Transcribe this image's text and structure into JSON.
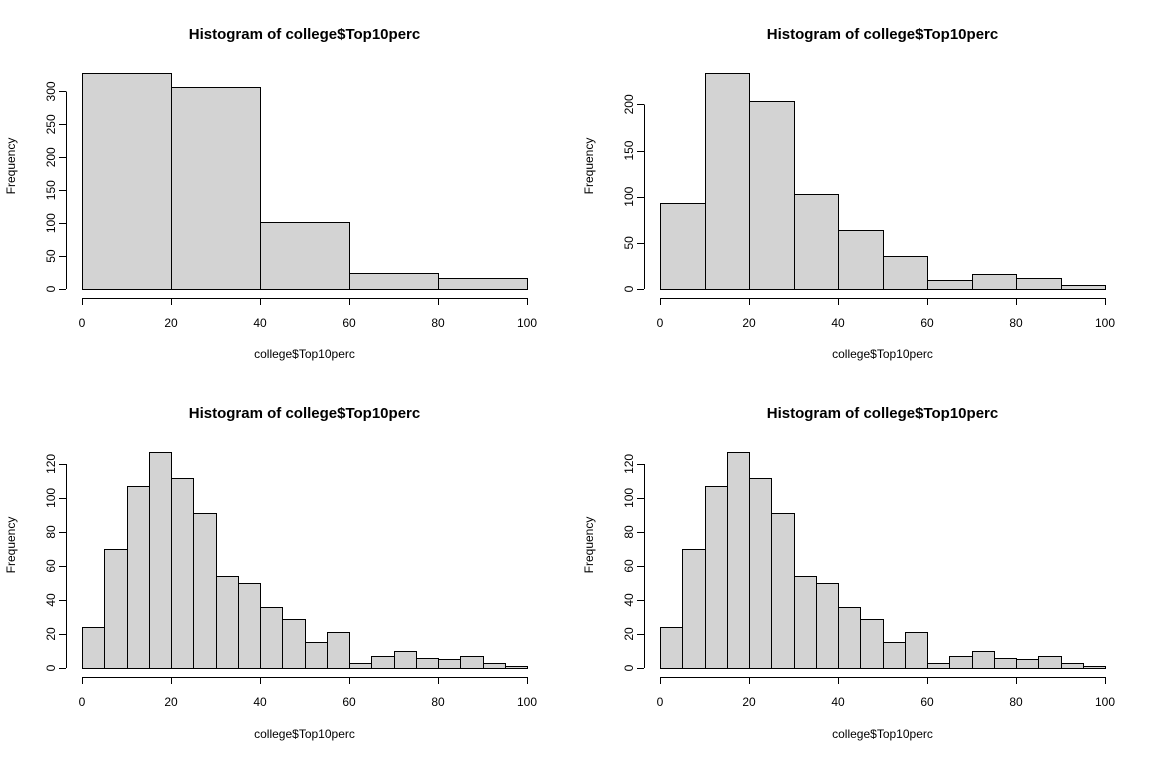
{
  "chart_data": [
    {
      "type": "bar",
      "title": "Histogram of college$Top10perc",
      "xlabel": "college$Top10perc",
      "ylabel": "Frequency",
      "breaks": [
        0,
        20,
        40,
        60,
        80,
        100
      ],
      "values": [
        328,
        307,
        101,
        25,
        16
      ],
      "xlim": [
        0,
        100
      ],
      "ylim": [
        0,
        328
      ],
      "xticks": [
        0,
        20,
        40,
        60,
        80,
        100
      ],
      "yticks": [
        0,
        50,
        100,
        150,
        200,
        250,
        300
      ]
    },
    {
      "type": "bar",
      "title": "Histogram of college$Top10perc",
      "xlabel": "college$Top10perc",
      "ylabel": "Frequency",
      "breaks": [
        0,
        10,
        20,
        30,
        40,
        50,
        60,
        70,
        80,
        90,
        100
      ],
      "values": [
        93,
        234,
        204,
        103,
        64,
        36,
        10,
        16,
        12,
        4
      ],
      "xlim": [
        0,
        100
      ],
      "ylim": [
        0,
        234
      ],
      "xticks": [
        0,
        20,
        40,
        60,
        80,
        100
      ],
      "yticks": [
        0,
        50,
        100,
        150,
        200
      ]
    },
    {
      "type": "bar",
      "title": "Histogram of college$Top10perc",
      "xlabel": "college$Top10perc",
      "ylabel": "Frequency",
      "breaks": [
        0,
        5,
        10,
        15,
        20,
        25,
        30,
        35,
        40,
        45,
        50,
        55,
        60,
        65,
        70,
        75,
        80,
        85,
        90,
        95,
        100
      ],
      "values": [
        24,
        70,
        107,
        127,
        112,
        91,
        54,
        50,
        36,
        29,
        15,
        21,
        3,
        7,
        10,
        6,
        5,
        7,
        3,
        1
      ],
      "xlim": [
        0,
        100
      ],
      "ylim": [
        0,
        127
      ],
      "xticks": [
        0,
        20,
        40,
        60,
        80,
        100
      ],
      "yticks": [
        0,
        20,
        40,
        60,
        80,
        100,
        120
      ]
    },
    {
      "type": "bar",
      "title": "Histogram of college$Top10perc",
      "xlabel": "college$Top10perc",
      "ylabel": "Frequency",
      "breaks": [
        0,
        5,
        10,
        15,
        20,
        25,
        30,
        35,
        40,
        45,
        50,
        55,
        60,
        65,
        70,
        75,
        80,
        85,
        90,
        95,
        100
      ],
      "values": [
        24,
        70,
        107,
        127,
        112,
        91,
        54,
        50,
        36,
        29,
        15,
        21,
        3,
        7,
        10,
        6,
        5,
        7,
        3,
        1
      ],
      "xlim": [
        0,
        100
      ],
      "ylim": [
        0,
        127
      ],
      "xticks": [
        0,
        20,
        40,
        60,
        80,
        100
      ],
      "yticks": [
        0,
        20,
        40,
        60,
        80,
        100,
        120
      ]
    }
  ]
}
